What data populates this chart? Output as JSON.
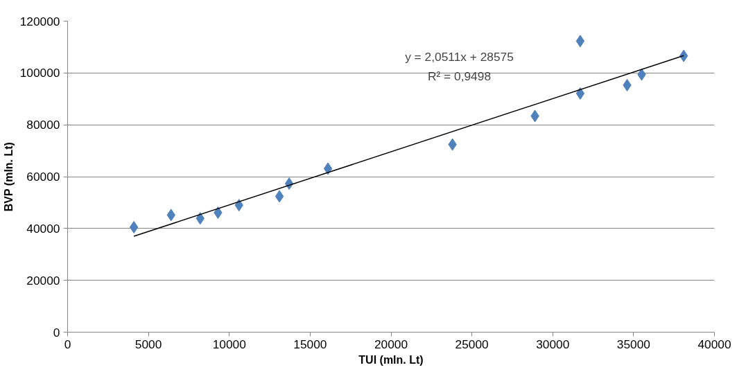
{
  "chart_data": {
    "type": "scatter",
    "xlabel": "TUI (mln. Lt)",
    "ylabel": "BVP (mln. Lt)",
    "xlim": [
      0,
      40000
    ],
    "xticks": [
      0,
      5000,
      10000,
      15000,
      20000,
      25000,
      30000,
      35000,
      40000
    ],
    "ylim": [
      0,
      120000
    ],
    "yticks": [
      0,
      20000,
      40000,
      60000,
      80000,
      100000,
      120000
    ],
    "grid": "y",
    "series": [
      {
        "marker": "diamond",
        "color": "#4f81bd",
        "x": [
          4100,
          6400,
          8200,
          9300,
          10600,
          13100,
          13700,
          16100,
          23800,
          28900,
          31700,
          31700,
          34600,
          35500,
          38100
        ],
        "values": [
          40500,
          45200,
          43900,
          46100,
          49000,
          52400,
          57300,
          63100,
          72400,
          83400,
          112300,
          92100,
          95300,
          99400,
          106600
        ]
      },
      {
        "type": "line",
        "color": "#000000",
        "x": [
          4100,
          38100
        ],
        "values": [
          37000,
          106700
        ]
      }
    ],
    "annotations": [
      "y = 2,0511x + 28575",
      "R² = 0,9498"
    ]
  }
}
